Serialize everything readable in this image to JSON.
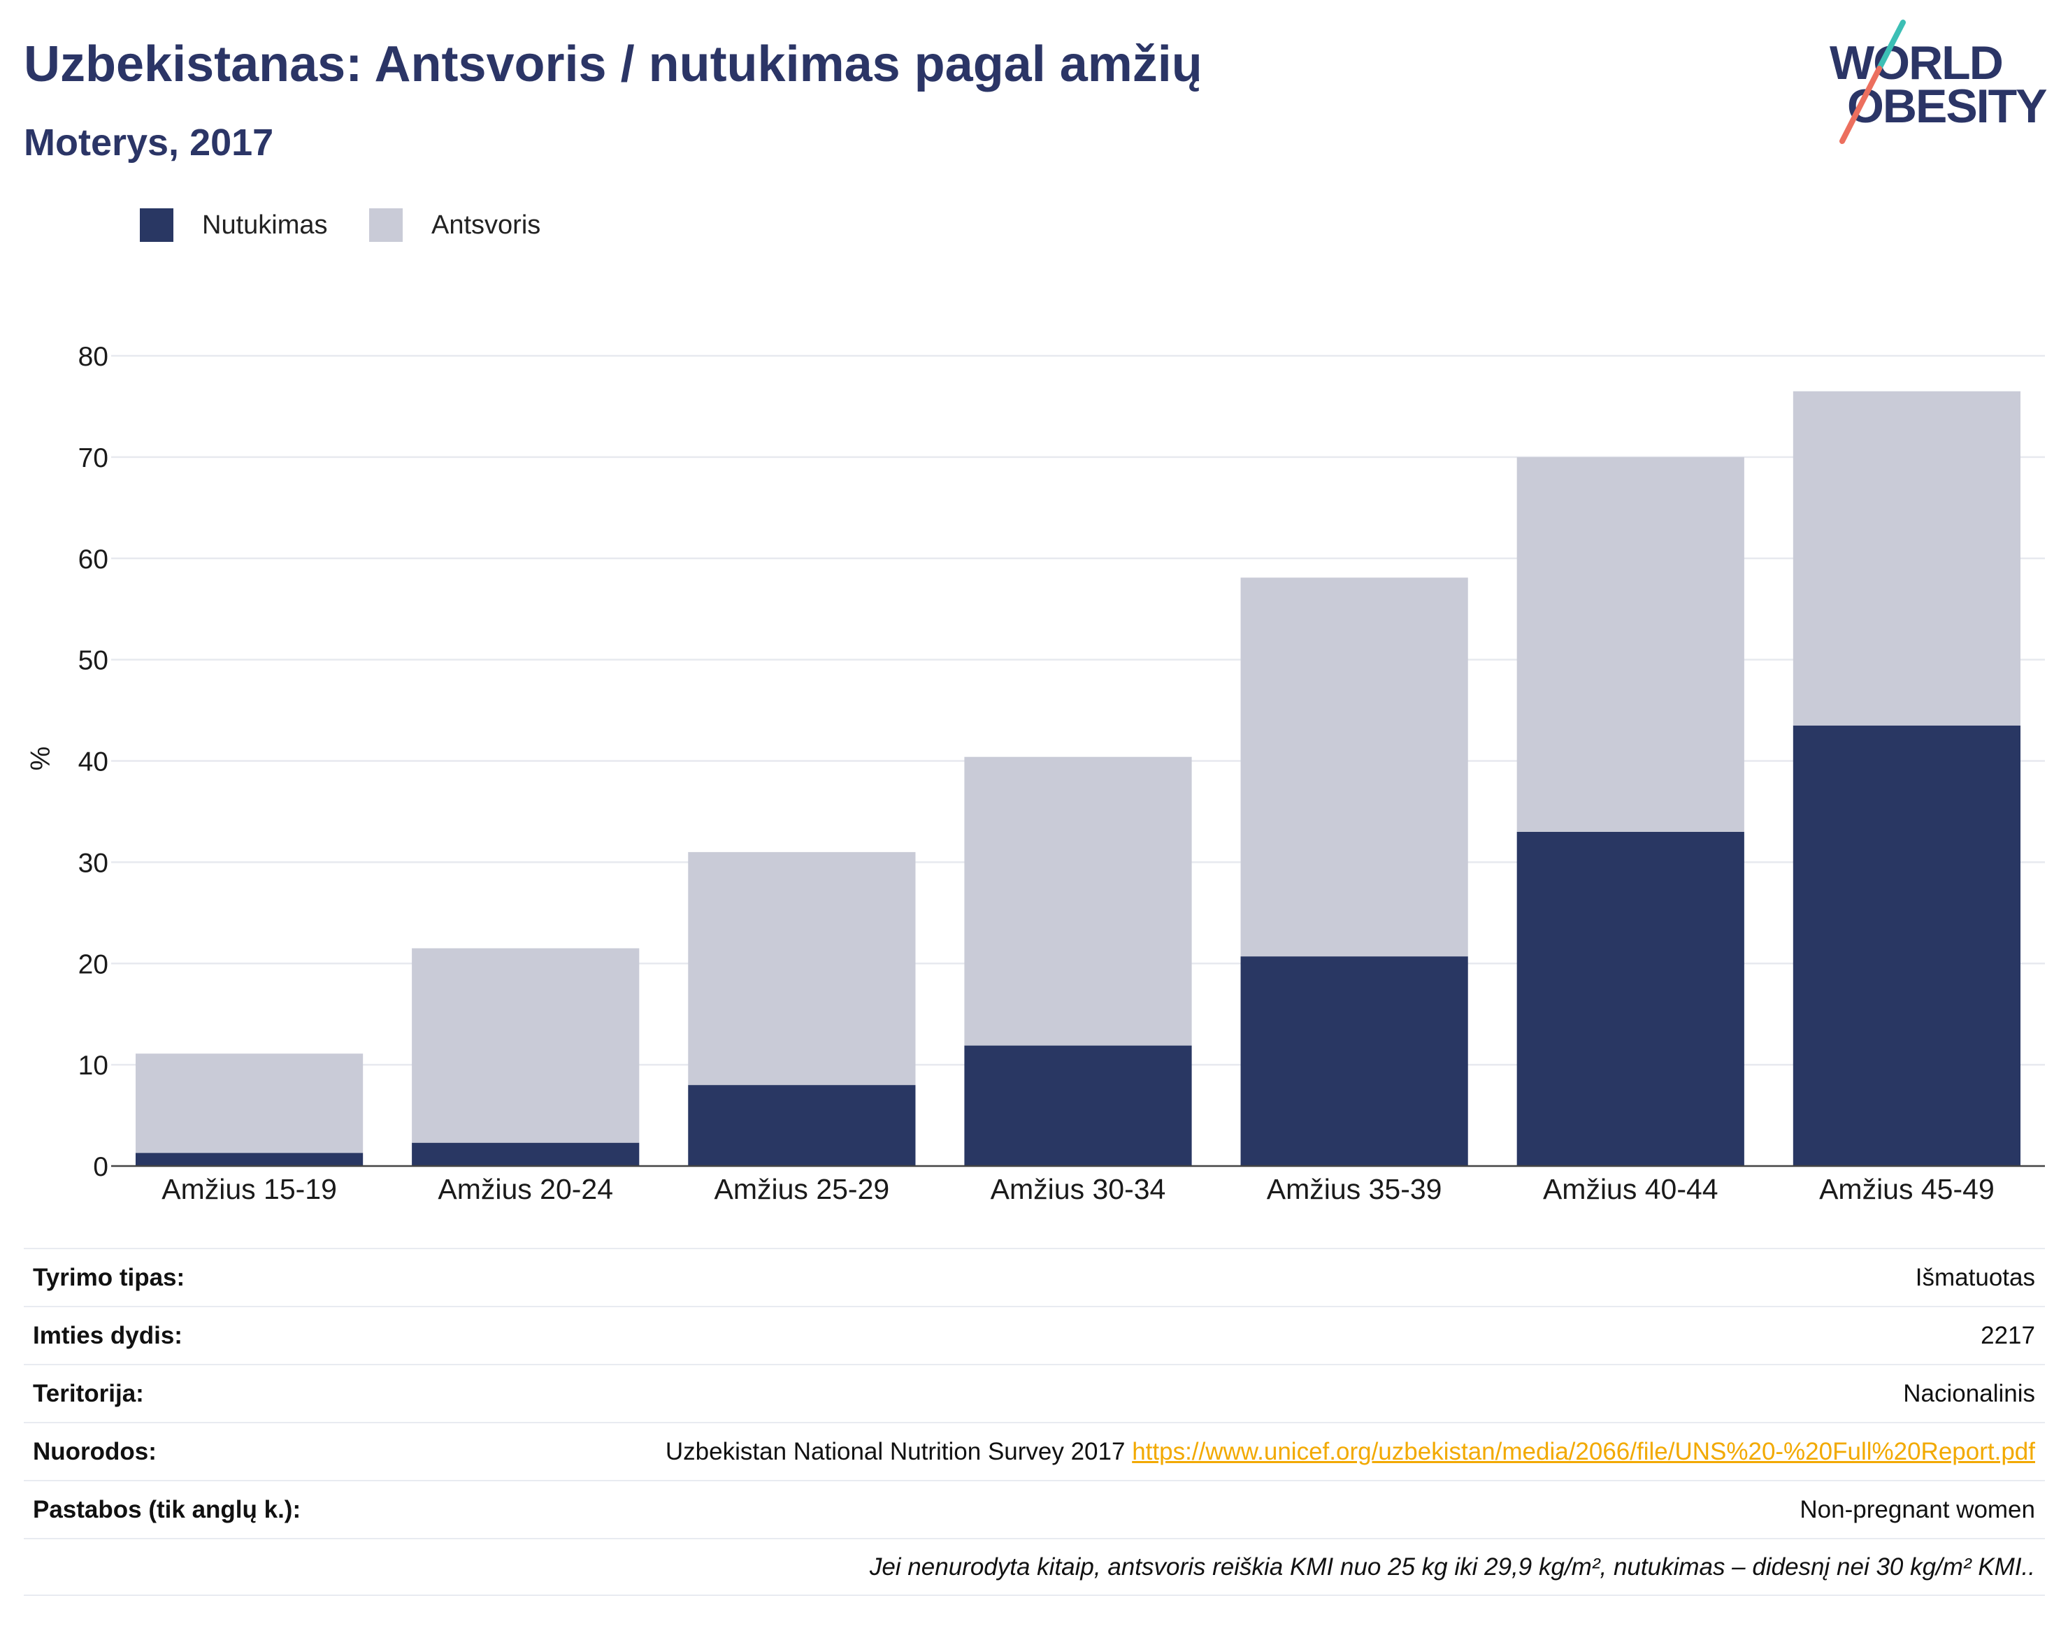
{
  "brand_color": "#2b3566",
  "logo": {
    "line1": "WORLD",
    "line2": "OBESITY",
    "slash_colors": [
      "#3cbfb5",
      "#ec6f5e"
    ]
  },
  "chart_data": {
    "type": "bar",
    "stacked": true,
    "title": "Uzbekistanas: Antsvoris / nutukimas pagal amžių",
    "subtitle": "Moterys, 2017",
    "xlabel": "",
    "ylabel": "%",
    "ylim": [
      0,
      80
    ],
    "yticks": [
      0,
      10,
      20,
      30,
      40,
      50,
      60,
      70,
      80
    ],
    "grid": true,
    "legend_position": "top-left",
    "categories": [
      "Amžius 15-19",
      "Amžius 20-24",
      "Amžius 25-29",
      "Amžius 30-34",
      "Amžius 35-39",
      "Amžius 40-44",
      "Amžius 45-49"
    ],
    "series": [
      {
        "name": "Nutukimas",
        "color": "#293763",
        "values": [
          1.3,
          2.3,
          8.0,
          11.9,
          20.7,
          33.0,
          43.5
        ]
      },
      {
        "name": "Antsvoris",
        "color": "#c9cbd7",
        "values": [
          9.8,
          19.2,
          23.0,
          28.5,
          37.4,
          37.0,
          33.0
        ]
      }
    ]
  },
  "details": {
    "rows": [
      {
        "label": "Tyrimo tipas:",
        "value": "Išmatuotas"
      },
      {
        "label": "Imties dydis:",
        "value": "2217"
      },
      {
        "label": "Teritorija:",
        "value": "Nacionalinis"
      }
    ],
    "references": {
      "label": "Nuorodos:",
      "text": "Uzbekistan National Nutrition Survey 2017",
      "link": "https://www.unicef.org/uzbekistan/media/2066/file/UNS%20-%20Full%20Report.pdf"
    },
    "notes": {
      "label": "Pastabos (tik anglų k.):",
      "value": "Non-pregnant women"
    },
    "footnote": "Jei nenurodyta kitaip, antsvoris reiškia KMI nuo 25 kg iki 29,9 kg/m², nutukimas – didesnį nei 30 kg/m² KMI..",
    "link_color": "#f2a900"
  }
}
